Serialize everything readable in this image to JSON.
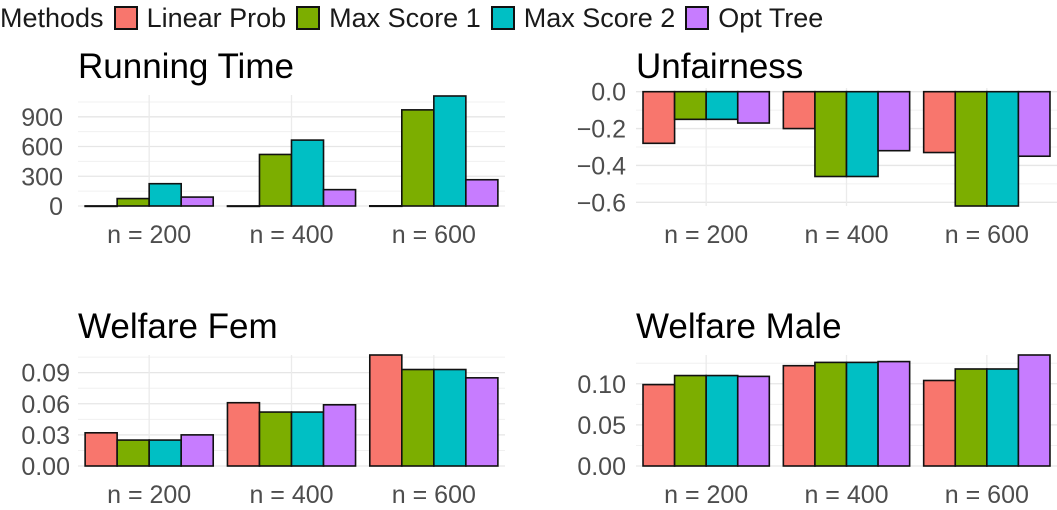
{
  "legend": {
    "title": "Methods",
    "items": [
      {
        "label": "Linear Prob",
        "color": "#F8766D"
      },
      {
        "label": "Max Score 1",
        "color": "#7CAE00"
      },
      {
        "label": "Max Score 2",
        "color": "#00BFC4"
      },
      {
        "label": "Opt Tree",
        "color": "#C77CFF"
      }
    ]
  },
  "chart_data": [
    {
      "type": "bar",
      "title": "Running Time",
      "categories": [
        "n = 200",
        "n = 400",
        "n = 600"
      ],
      "series": [
        {
          "name": "Linear Prob",
          "values": [
            1,
            1,
            2
          ]
        },
        {
          "name": "Max Score 1",
          "values": [
            75,
            520,
            970
          ]
        },
        {
          "name": "Max Score 2",
          "values": [
            225,
            665,
            1110
          ]
        },
        {
          "name": "Opt Tree",
          "values": [
            90,
            165,
            265
          ]
        }
      ],
      "yticks": [
        0,
        300,
        600,
        900
      ],
      "ytick_labels": [
        "0",
        "300",
        "600",
        "900"
      ],
      "ylim": [
        0,
        1120
      ],
      "grid": true
    },
    {
      "type": "bar",
      "title": "Unfairness",
      "categories": [
        "n = 200",
        "n = 400",
        "n = 600"
      ],
      "series": [
        {
          "name": "Linear Prob",
          "values": [
            -0.28,
            -0.2,
            -0.33
          ]
        },
        {
          "name": "Max Score 1",
          "values": [
            -0.15,
            -0.46,
            -0.62
          ]
        },
        {
          "name": "Max Score 2",
          "values": [
            -0.15,
            -0.46,
            -0.62
          ]
        },
        {
          "name": "Opt Tree",
          "values": [
            -0.17,
            -0.32,
            -0.35
          ]
        }
      ],
      "yticks": [
        0.0,
        -0.2,
        -0.4,
        -0.6
      ],
      "ytick_labels": [
        "0.0",
        "−0.2",
        "−0.4",
        "−0.6"
      ],
      "ylim": [
        -0.62,
        0.02
      ],
      "grid": true
    },
    {
      "type": "bar",
      "title": "Welfare Fem",
      "categories": [
        "n = 200",
        "n = 400",
        "n = 600"
      ],
      "series": [
        {
          "name": "Linear Prob",
          "values": [
            0.032,
            0.061,
            0.107
          ]
        },
        {
          "name": "Max Score 1",
          "values": [
            0.025,
            0.052,
            0.093
          ]
        },
        {
          "name": "Max Score 2",
          "values": [
            0.025,
            0.052,
            0.093
          ]
        },
        {
          "name": "Opt Tree",
          "values": [
            0.03,
            0.059,
            0.085
          ]
        }
      ],
      "yticks": [
        0.0,
        0.03,
        0.06,
        0.09
      ],
      "ytick_labels": [
        "0.00",
        "0.03",
        "0.06",
        "0.09"
      ],
      "ylim": [
        0,
        0.107
      ],
      "grid": true
    },
    {
      "type": "bar",
      "title": "Welfare Male",
      "categories": [
        "n = 200",
        "n = 400",
        "n = 600"
      ],
      "series": [
        {
          "name": "Linear Prob",
          "values": [
            0.099,
            0.122,
            0.104
          ]
        },
        {
          "name": "Max Score 1",
          "values": [
            0.11,
            0.126,
            0.118
          ]
        },
        {
          "name": "Max Score 2",
          "values": [
            0.11,
            0.126,
            0.118
          ]
        },
        {
          "name": "Opt Tree",
          "values": [
            0.109,
            0.127,
            0.135
          ]
        }
      ],
      "yticks": [
        0.0,
        0.05,
        0.1
      ],
      "ytick_labels": [
        "0.00",
        "0.05",
        "0.10"
      ],
      "ylim": [
        0,
        0.135
      ],
      "grid": true
    }
  ]
}
